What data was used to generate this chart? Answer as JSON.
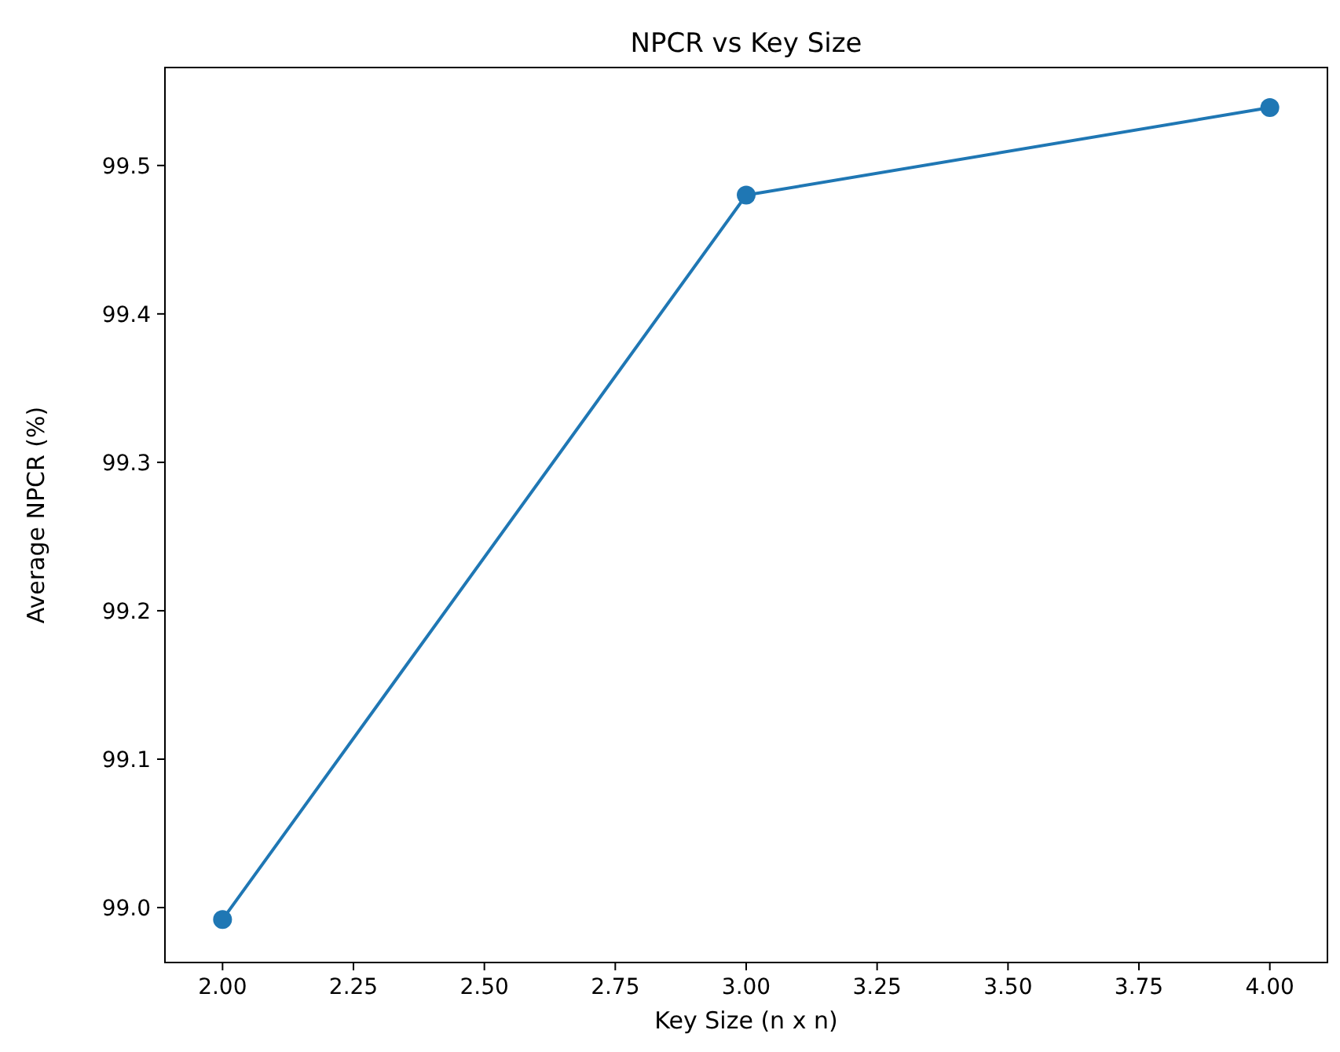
{
  "chart_data": {
    "type": "line",
    "title": "NPCR vs Key Size",
    "xlabel": "Key Size (n x n)",
    "ylabel": "Average NPCR (%)",
    "x": [
      2,
      3,
      4
    ],
    "series": [
      {
        "color": "#1f77b4",
        "values": [
          98.992,
          99.48,
          99.539
        ]
      }
    ],
    "marker": "circle",
    "line_style": "solid",
    "grid": false,
    "xlim": [
      1.89,
      4.11
    ],
    "xticks": [
      {
        "value": 2,
        "label": "2.00"
      },
      {
        "value": 2.25,
        "label": "2.25"
      },
      {
        "value": 2.5,
        "label": "2.50"
      },
      {
        "value": 2.75,
        "label": "2.75"
      },
      {
        "value": 3,
        "label": "3.00"
      },
      {
        "value": 3.25,
        "label": "3.25"
      },
      {
        "value": 3.5,
        "label": "3.50"
      },
      {
        "value": 3.75,
        "label": "3.75"
      },
      {
        "value": 4,
        "label": "4.00"
      }
    ],
    "ylim": [
      98.963,
      99.566
    ],
    "yticks": [
      {
        "value": 99,
        "label": "99.0"
      },
      99.1,
      99.2,
      99.3,
      99.4,
      99.5
    ]
  }
}
